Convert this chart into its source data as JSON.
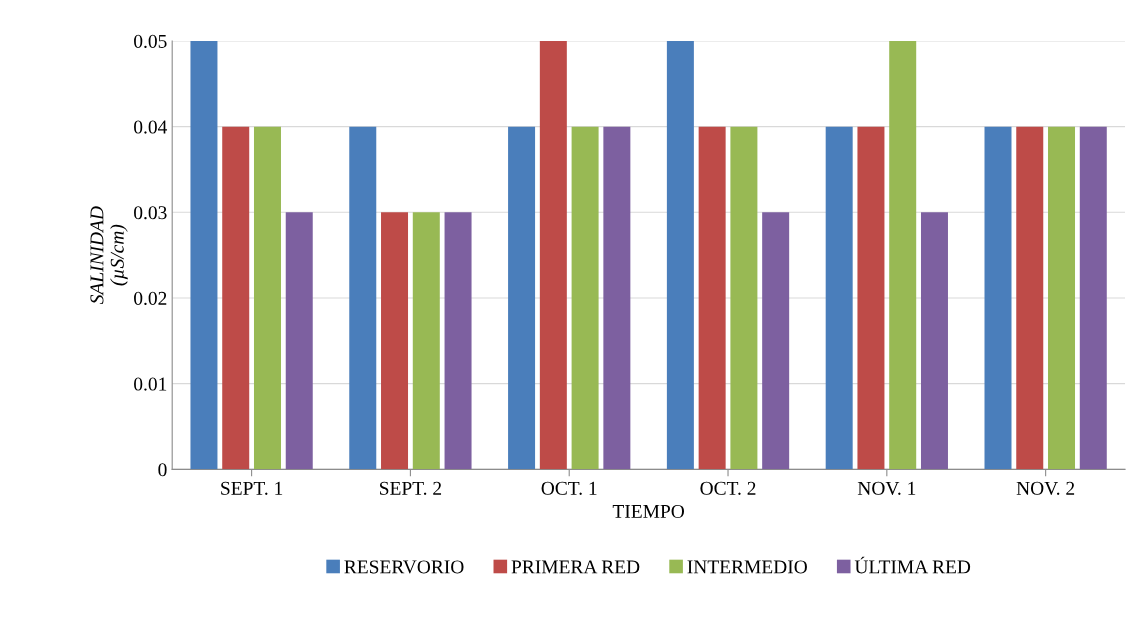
{
  "chart_data": {
    "type": "bar",
    "xlabel": "TIEMPO",
    "ylabel": "SALINIDAD\n(µS/cm)",
    "categories": [
      "SEPT. 1",
      "SEPT. 2",
      "OCT. 1",
      "OCT. 2",
      "NOV. 1",
      "NOV. 2"
    ],
    "series": [
      {
        "name": "RESERVORIO",
        "color": "#4a7ebb",
        "values": [
          0.05,
          0.04,
          0.04,
          0.05,
          0.04,
          0.04
        ]
      },
      {
        "name": "PRIMERA RED",
        "color": "#be4b48",
        "values": [
          0.04,
          0.03,
          0.05,
          0.04,
          0.04,
          0.04
        ]
      },
      {
        "name": "INTERMEDIO",
        "color": "#98b954",
        "values": [
          0.04,
          0.03,
          0.04,
          0.04,
          0.05,
          0.04
        ]
      },
      {
        "name": "ÚLTIMA RED",
        "color": "#7d60a0",
        "values": [
          0.03,
          0.03,
          0.04,
          0.03,
          0.03,
          0.04
        ]
      }
    ],
    "ylim": [
      0,
      0.05
    ],
    "yticks": [
      0,
      0.01,
      0.02,
      0.03,
      0.04,
      0.05
    ],
    "grid": "y",
    "legend": "bottom"
  }
}
